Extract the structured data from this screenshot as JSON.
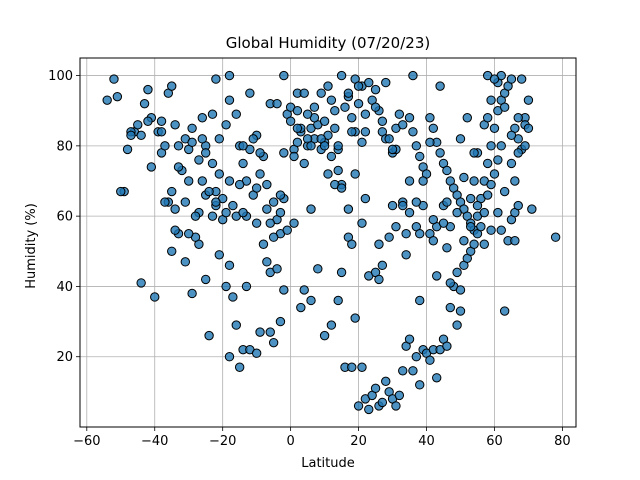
{
  "chart_data": {
    "type": "scatter",
    "title": "Global Humidity (07/20/23)",
    "xlabel": "Latitude",
    "ylabel": "Humidity (%)",
    "xlim": [
      -62,
      84
    ],
    "ylim": [
      0,
      105
    ],
    "xticks": [
      -60,
      -40,
      -20,
      0,
      20,
      40,
      60,
      80
    ],
    "yticks": [
      20,
      40,
      60,
      80,
      100
    ],
    "xtick_labels": [
      "−60",
      "−40",
      "−20",
      "0",
      "20",
      "40",
      "60",
      "80"
    ],
    "ytick_labels": [
      "20",
      "40",
      "60",
      "80",
      "100"
    ],
    "grid": true,
    "marker_color": "#1f77b4",
    "marker_edge": "#000000",
    "points": [
      [
        -54,
        93
      ],
      [
        -52,
        99
      ],
      [
        -51,
        94
      ],
      [
        -49,
        67
      ],
      [
        -46,
        84
      ],
      [
        -44,
        83
      ],
      [
        -43,
        92
      ],
      [
        -42,
        96
      ],
      [
        -41,
        88
      ],
      [
        -38,
        87
      ],
      [
        -36,
        95
      ],
      [
        -35,
        97
      ],
      [
        -34,
        86
      ],
      [
        -33,
        80
      ],
      [
        -31,
        82
      ],
      [
        -30,
        79
      ],
      [
        -29,
        81
      ],
      [
        -27,
        76
      ],
      [
        -25,
        80
      ],
      [
        -23,
        75
      ],
      [
        -22,
        63
      ],
      [
        -21,
        82
      ],
      [
        -19,
        86
      ],
      [
        -18,
        93
      ],
      [
        -16,
        89
      ],
      [
        -15,
        80
      ],
      [
        -14,
        75
      ],
      [
        -12,
        79
      ],
      [
        -10,
        83
      ],
      [
        -8,
        77
      ],
      [
        -7,
        69
      ],
      [
        -5,
        64
      ],
      [
        -4,
        59
      ],
      [
        -3,
        55
      ],
      [
        -2,
        65
      ],
      [
        -1,
        89
      ],
      [
        0,
        87
      ],
      [
        1,
        79
      ],
      [
        2,
        81
      ],
      [
        3,
        84
      ],
      [
        4,
        75
      ],
      [
        5,
        80
      ],
      [
        6,
        85
      ],
      [
        7,
        82
      ],
      [
        8,
        86
      ],
      [
        9,
        79
      ],
      [
        10,
        81
      ],
      [
        11,
        83
      ],
      [
        12,
        77
      ],
      [
        13,
        85
      ],
      [
        14,
        73
      ],
      [
        15,
        69
      ],
      [
        16,
        91
      ],
      [
        17,
        94
      ],
      [
        18,
        88
      ],
      [
        19,
        84
      ],
      [
        20,
        92
      ],
      [
        21,
        97
      ],
      [
        22,
        89
      ],
      [
        24,
        93
      ],
      [
        25,
        96
      ],
      [
        26,
        90
      ],
      [
        27,
        84
      ],
      [
        28,
        82
      ],
      [
        30,
        78
      ],
      [
        31,
        85
      ],
      [
        32,
        89
      ],
      [
        33,
        86
      ],
      [
        35,
        88
      ],
      [
        36,
        84
      ],
      [
        37,
        80
      ],
      [
        38,
        77
      ],
      [
        39,
        74
      ],
      [
        40,
        72
      ],
      [
        41,
        88
      ],
      [
        42,
        85
      ],
      [
        43,
        81
      ],
      [
        44,
        78
      ],
      [
        45,
        75
      ],
      [
        46,
        73
      ],
      [
        47,
        70
      ],
      [
        48,
        68
      ],
      [
        49,
        66
      ],
      [
        50,
        64
      ],
      [
        51,
        62
      ],
      [
        52,
        60
      ],
      [
        53,
        58
      ],
      [
        54,
        56
      ],
      [
        55,
        60
      ],
      [
        56,
        65
      ],
      [
        57,
        70
      ],
      [
        58,
        75
      ],
      [
        59,
        80
      ],
      [
        60,
        85
      ],
      [
        61,
        90
      ],
      [
        62,
        93
      ],
      [
        63,
        95
      ],
      [
        64,
        97
      ],
      [
        65,
        99
      ],
      [
        66,
        85
      ],
      [
        67,
        82
      ],
      [
        68,
        79
      ],
      [
        69,
        88
      ],
      [
        70,
        93
      ],
      [
        71,
        62
      ],
      [
        78,
        54
      ],
      [
        -40,
        37
      ],
      [
        -38,
        78
      ],
      [
        -36,
        64
      ],
      [
        -34,
        62
      ],
      [
        -33,
        55
      ],
      [
        -31,
        47
      ],
      [
        -29,
        38
      ],
      [
        -27,
        52
      ],
      [
        -25,
        42
      ],
      [
        -24,
        26
      ],
      [
        -22,
        67
      ],
      [
        -20,
        59
      ],
      [
        -19,
        40
      ],
      [
        -18,
        20
      ],
      [
        -17,
        37
      ],
      [
        -16,
        29
      ],
      [
        -15,
        17
      ],
      [
        -14,
        22
      ],
      [
        -13,
        40
      ],
      [
        -12,
        22
      ],
      [
        -10,
        21
      ],
      [
        -9,
        27
      ],
      [
        -8,
        52
      ],
      [
        -7,
        47
      ],
      [
        -6,
        44
      ],
      [
        -5,
        24
      ],
      [
        -4,
        45
      ],
      [
        -3,
        30
      ],
      [
        -2,
        39
      ],
      [
        1,
        58
      ],
      [
        3,
        34
      ],
      [
        4,
        39
      ],
      [
        6,
        36
      ],
      [
        8,
        45
      ],
      [
        10,
        26
      ],
      [
        12,
        29
      ],
      [
        14,
        36
      ],
      [
        15,
        44
      ],
      [
        16,
        17
      ],
      [
        17,
        54
      ],
      [
        18,
        17
      ],
      [
        19,
        31
      ],
      [
        20,
        6
      ],
      [
        21,
        17
      ],
      [
        22,
        8
      ],
      [
        23,
        5
      ],
      [
        24,
        9
      ],
      [
        25,
        11
      ],
      [
        26,
        6
      ],
      [
        27,
        7
      ],
      [
        28,
        13
      ],
      [
        29,
        10
      ],
      [
        30,
        8
      ],
      [
        31,
        6
      ],
      [
        32,
        9
      ],
      [
        33,
        16
      ],
      [
        34,
        23
      ],
      [
        35,
        25
      ],
      [
        36,
        16
      ],
      [
        37,
        20
      ],
      [
        38,
        12
      ],
      [
        39,
        22
      ],
      [
        40,
        21
      ],
      [
        41,
        19
      ],
      [
        42,
        22
      ],
      [
        43,
        14
      ],
      [
        44,
        22
      ],
      [
        45,
        25
      ],
      [
        46,
        23
      ],
      [
        47,
        34
      ],
      [
        48,
        40
      ],
      [
        49,
        29
      ],
      [
        50,
        33
      ],
      [
        51,
        46
      ],
      [
        52,
        48
      ],
      [
        53,
        50
      ],
      [
        54,
        52
      ],
      [
        55,
        55
      ],
      [
        56,
        57
      ],
      [
        57,
        61
      ],
      [
        58,
        66
      ],
      [
        59,
        69
      ],
      [
        60,
        72
      ],
      [
        61,
        76
      ],
      [
        62,
        56
      ],
      [
        63,
        33
      ],
      [
        64,
        53
      ],
      [
        65,
        59
      ],
      [
        66,
        61
      ],
      [
        67,
        63
      ],
      [
        -48,
        79
      ],
      [
        -47,
        84
      ],
      [
        -45,
        86
      ],
      [
        -39,
        84
      ],
      [
        -37,
        80
      ],
      [
        -35,
        67
      ],
      [
        -32,
        73
      ],
      [
        -30,
        70
      ],
      [
        -28,
        54
      ],
      [
        -26,
        70
      ],
      [
        -23,
        60
      ],
      [
        -21,
        49
      ],
      [
        -20,
        65
      ],
      [
        -18,
        70
      ],
      [
        -16,
        60
      ],
      [
        -13,
        70
      ],
      [
        -11,
        66
      ],
      [
        -9,
        72
      ],
      [
        -6,
        58
      ],
      [
        -3,
        61
      ],
      [
        0,
        91
      ],
      [
        2,
        95
      ],
      [
        5,
        82
      ],
      [
        7,
        88
      ],
      [
        9,
        82
      ],
      [
        11,
        72
      ],
      [
        13,
        69
      ],
      [
        15,
        68
      ],
      [
        17,
        62
      ],
      [
        19,
        72
      ],
      [
        21,
        58
      ],
      [
        23,
        43
      ],
      [
        25,
        44
      ],
      [
        27,
        46
      ],
      [
        29,
        54
      ],
      [
        31,
        57
      ],
      [
        33,
        64
      ],
      [
        35,
        70
      ],
      [
        37,
        57
      ],
      [
        39,
        63
      ],
      [
        41,
        55
      ],
      [
        43,
        57
      ],
      [
        45,
        63
      ],
      [
        47,
        57
      ],
      [
        49,
        61
      ],
      [
        51,
        71
      ],
      [
        53,
        65
      ],
      [
        55,
        78
      ],
      [
        57,
        86
      ],
      [
        59,
        93
      ],
      [
        61,
        98
      ],
      [
        63,
        91
      ],
      [
        65,
        83
      ],
      [
        67,
        88
      ],
      [
        69,
        86
      ],
      [
        -50,
        67
      ],
      [
        -44,
        41
      ],
      [
        -37,
        64
      ],
      [
        -35,
        50
      ],
      [
        -33,
        74
      ],
      [
        -31,
        64
      ],
      [
        -29,
        85
      ],
      [
        -27,
        61
      ],
      [
        -25,
        66
      ],
      [
        -23,
        89
      ],
      [
        -21,
        72
      ],
      [
        -19,
        61
      ],
      [
        -17,
        63
      ],
      [
        -15,
        69
      ],
      [
        -13,
        60
      ],
      [
        -11,
        82
      ],
      [
        -9,
        78
      ],
      [
        -7,
        62
      ],
      [
        -5,
        54
      ],
      [
        -3,
        66
      ],
      [
        -1,
        56
      ],
      [
        1,
        77
      ],
      [
        3,
        85
      ],
      [
        5,
        89
      ],
      [
        7,
        91
      ],
      [
        9,
        95
      ],
      [
        11,
        97
      ],
      [
        13,
        90
      ],
      [
        15,
        100
      ],
      [
        17,
        95
      ],
      [
        19,
        99
      ],
      [
        21,
        81
      ],
      [
        23,
        98
      ],
      [
        25,
        91
      ],
      [
        27,
        87
      ],
      [
        29,
        82
      ],
      [
        31,
        79
      ],
      [
        33,
        63
      ],
      [
        35,
        61
      ],
      [
        37,
        64
      ],
      [
        39,
        70
      ],
      [
        41,
        81
      ],
      [
        43,
        43
      ],
      [
        45,
        58
      ],
      [
        47,
        41
      ],
      [
        49,
        44
      ],
      [
        51,
        53
      ],
      [
        53,
        57
      ],
      [
        55,
        63
      ],
      [
        57,
        52
      ],
      [
        59,
        56
      ],
      [
        61,
        61
      ],
      [
        63,
        67
      ],
      [
        65,
        75
      ],
      [
        67,
        78
      ],
      [
        69,
        80
      ],
      [
        -28,
        60
      ],
      [
        -26,
        88
      ],
      [
        -24,
        67
      ],
      [
        -22,
        99
      ],
      [
        -18,
        100
      ],
      [
        -14,
        61
      ],
      [
        -10,
        68
      ],
      [
        -6,
        92
      ],
      [
        -2,
        100
      ],
      [
        2,
        85
      ],
      [
        6,
        80
      ],
      [
        10,
        80
      ],
      [
        14,
        79
      ],
      [
        18,
        84
      ],
      [
        22,
        65
      ],
      [
        26,
        52
      ],
      [
        30,
        79
      ],
      [
        34,
        55
      ],
      [
        38,
        55
      ],
      [
        42,
        53
      ],
      [
        46,
        51
      ],
      [
        50,
        39
      ],
      [
        54,
        70
      ],
      [
        58,
        100
      ],
      [
        62,
        80
      ],
      [
        66,
        70
      ],
      [
        70,
        85
      ],
      [
        -42,
        87
      ],
      [
        -38,
        84
      ],
      [
        -34,
        56
      ],
      [
        -30,
        55
      ],
      [
        -26,
        82
      ],
      [
        -22,
        64
      ],
      [
        -18,
        46
      ],
      [
        -14,
        80
      ],
      [
        -10,
        58
      ],
      [
        -6,
        27
      ],
      [
        -2,
        78
      ],
      [
        2,
        90
      ],
      [
        6,
        62
      ],
      [
        10,
        87
      ],
      [
        14,
        80
      ],
      [
        18,
        52
      ],
      [
        22,
        84
      ],
      [
        26,
        42
      ],
      [
        30,
        63
      ],
      [
        34,
        49
      ],
      [
        38,
        36
      ],
      [
        42,
        59
      ],
      [
        46,
        64
      ],
      [
        50,
        82
      ],
      [
        54,
        78
      ],
      [
        58,
        88
      ],
      [
        62,
        100
      ],
      [
        66,
        53
      ],
      [
        -47,
        83
      ],
      [
        -41,
        74
      ],
      [
        -25,
        78
      ],
      [
        -12,
        95
      ],
      [
        -4,
        92
      ],
      [
        4,
        95
      ],
      [
        12,
        93
      ],
      [
        20,
        97
      ],
      [
        28,
        98
      ],
      [
        36,
        100
      ],
      [
        44,
        97
      ],
      [
        52,
        88
      ],
      [
        60,
        99
      ],
      [
        68,
        99
      ]
    ]
  }
}
